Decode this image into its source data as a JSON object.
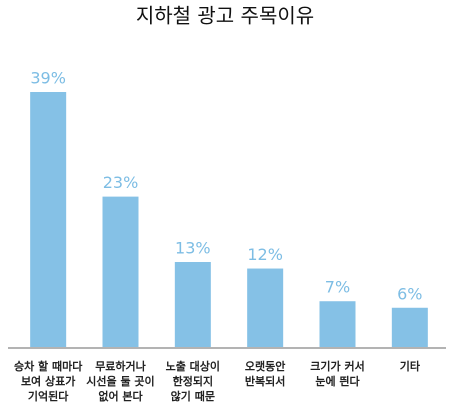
{
  "chart_data": {
    "type": "bar",
    "title": "지하철 광고 주목이유",
    "categories": [
      [
        "승차 할 때마다",
        "보여 상표가",
        "기억된다"
      ],
      [
        "무료하거나",
        "시선을 둘 곳이",
        "없어 본다"
      ],
      [
        "노출 대상이",
        "한정되지",
        "않기 때문"
      ],
      [
        "오랫동안",
        "반복되서"
      ],
      [
        "크기가 커서",
        "눈에 띈다"
      ],
      [
        "기타"
      ]
    ],
    "values": [
      39,
      23,
      13,
      12,
      7,
      6
    ],
    "value_labels": [
      "39%",
      "23%",
      "13%",
      "12%",
      "7%",
      "6%"
    ],
    "color": "#85c1e6"
  }
}
